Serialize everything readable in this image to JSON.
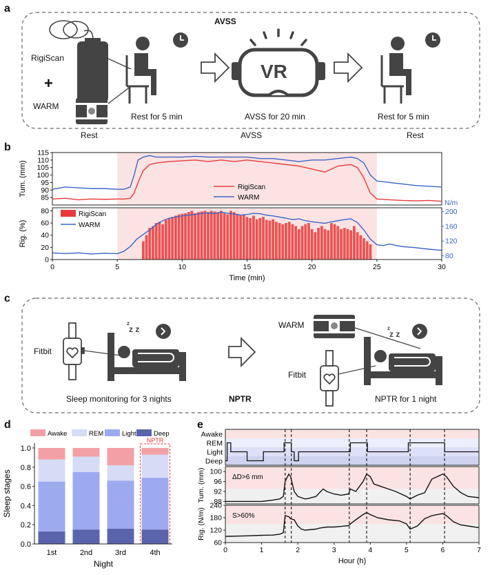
{
  "panel_a": {
    "letter": "a",
    "title": "AVSS",
    "rigiscan_label": "RigiScan",
    "plus": "+",
    "warm_label": "WARM",
    "vr_text": "VR",
    "step1": "Rest for 5 min",
    "step2": "AVSS for 20 min",
    "step3": "Rest for 5 min",
    "bottom1": "Rest",
    "bottom2": "AVSS",
    "bottom3": "Rest"
  },
  "panel_b": {
    "letter": "b"
  },
  "panel_c": {
    "letter": "c",
    "fitbit_left": "Fitbit",
    "sleep_caption": "Sleep monitoring for 3 nights",
    "nptr_center": "NPTR",
    "warm_label": "WARM",
    "fitbit_right": "Fitbit",
    "nptr_caption": "NPTR for 1 night",
    "zzz": "z z",
    "zzz_small": "z"
  },
  "panel_d": {
    "letter": "d"
  },
  "panel_e": {
    "letter": "e"
  },
  "colors": {
    "rigiscan": "#e83a3a",
    "warm": "#3a64c8",
    "shade": "#fbe3e3",
    "awake": "#f2a0a6",
    "rem": "#d6dbf6",
    "light": "#9eaaf0",
    "deep": "#5a64ad"
  },
  "chart_data": [
    {
      "id": "b-top",
      "type": "line",
      "ylabel": "Tum. (mm)",
      "ylim": [
        80,
        115
      ],
      "yticks": [
        85,
        90,
        95,
        100,
        105,
        110,
        115
      ],
      "xlim": [
        0,
        30
      ],
      "shade_x": [
        5,
        25
      ],
      "legend": [
        "RigiScan",
        "WARM"
      ],
      "series": [
        {
          "name": "RigiScan",
          "x": [
            0,
            1,
            2,
            3,
            4,
            5,
            5.5,
            6,
            6.3,
            6.6,
            7,
            7.5,
            8,
            9,
            10,
            11,
            12,
            13,
            14,
            15,
            16,
            17,
            18,
            19,
            20,
            21,
            22,
            23,
            23.5,
            24,
            24.5,
            25,
            26,
            27,
            28,
            29,
            30
          ],
          "values": [
            84,
            84.5,
            83.5,
            84,
            83.8,
            84,
            84,
            84.5,
            88,
            95,
            103,
            107,
            108,
            109,
            109.5,
            110,
            109,
            110,
            109,
            110,
            109,
            108,
            107,
            106,
            104,
            102,
            106,
            107,
            105,
            98,
            88,
            84,
            83.5,
            83,
            82.8,
            83,
            82.5
          ]
        },
        {
          "name": "WARM",
          "x": [
            0,
            1,
            2,
            3,
            4,
            5,
            5.5,
            6,
            6.3,
            6.6,
            7,
            7.5,
            8,
            9,
            10,
            11,
            12,
            13,
            14,
            15,
            16,
            17,
            18,
            19,
            20,
            21,
            22,
            23,
            23.5,
            24,
            24.5,
            25,
            26,
            27,
            28,
            29,
            30
          ],
          "values": [
            90.5,
            92,
            91.5,
            91,
            91,
            90.5,
            90.5,
            92,
            100,
            110,
            112,
            113,
            112,
            112,
            112,
            112.5,
            112,
            112,
            112,
            112,
            111,
            111,
            110,
            109,
            110,
            110,
            111,
            112,
            111,
            108,
            100,
            96,
            95,
            94,
            93,
            92.5,
            92
          ]
        }
      ]
    },
    {
      "id": "b-bottom",
      "type": "bar+line",
      "ylabel": "Rig. (%)",
      "xlabel": "Time (min)",
      "xlim": [
        0,
        30
      ],
      "xticks": [
        0,
        5,
        10,
        15,
        20,
        25,
        30
      ],
      "ylim": [
        0,
        85
      ],
      "yticks": [
        0,
        20,
        40,
        60,
        80
      ],
      "y2label": "N/m",
      "y2lim": [
        70,
        210
      ],
      "y2ticks": [
        80,
        120,
        160,
        200
      ],
      "shade_x": [
        5,
        25
      ],
      "legend": [
        "RigiScan",
        "WARM"
      ],
      "bars": {
        "name": "RigiScan",
        "x_start": 6.9,
        "x_end": 24.5,
        "step": 0.25,
        "values": [
          30,
          40,
          52,
          55,
          60,
          62,
          58,
          65,
          68,
          70,
          72,
          74,
          75,
          76,
          78,
          80,
          76,
          78,
          79,
          80,
          78,
          80,
          79,
          78,
          80,
          76,
          74,
          80,
          78,
          75,
          72,
          74,
          70,
          68,
          72,
          66,
          68,
          70,
          65,
          64,
          66,
          62,
          60,
          58,
          60,
          62,
          58,
          55,
          50,
          55,
          58,
          60,
          50,
          45,
          52,
          55,
          50,
          48,
          60,
          58,
          55,
          50,
          52,
          50,
          48,
          55,
          45,
          40,
          35,
          30,
          25
        ]
      },
      "series": [
        {
          "name": "WARM",
          "x": [
            0,
            1,
            2,
            3,
            4,
            5,
            5.5,
            6,
            6.5,
            7,
            7.5,
            8,
            8.5,
            9,
            9.5,
            10,
            10.5,
            11,
            11.5,
            12,
            12.5,
            13,
            13.5,
            14,
            14.5,
            15,
            15.5,
            16,
            16.5,
            17,
            17.5,
            18,
            18.5,
            19,
            19.5,
            20,
            20.5,
            21,
            21.5,
            22,
            22.5,
            23,
            23.5,
            24,
            24.5,
            25,
            25.5,
            26,
            26.5,
            27,
            28,
            29,
            30
          ],
          "values": [
            88,
            86,
            88,
            85,
            87,
            86,
            92,
            105,
            125,
            138,
            150,
            165,
            175,
            182,
            185,
            188,
            190,
            192,
            195,
            196,
            194,
            198,
            195,
            193,
            190,
            192,
            195,
            194,
            190,
            188,
            185,
            182,
            178,
            180,
            175,
            172,
            170,
            168,
            172,
            175,
            178,
            180,
            170,
            150,
            125,
            110,
            108,
            112,
            108,
            105,
            102,
            98,
            95
          ]
        }
      ]
    },
    {
      "id": "d",
      "type": "bar",
      "stacked": true,
      "ylabel": "Sleep stages",
      "xlabel": "Night",
      "ylim": [
        0,
        1.05
      ],
      "yticks": [
        0.0,
        0.2,
        0.4,
        0.6,
        0.8,
        1.0
      ],
      "categories": [
        "1st",
        "2nd",
        "3rd",
        "4th"
      ],
      "legend": [
        "Awake",
        "REM",
        "Light",
        "Deep"
      ],
      "annotation": "NPTR",
      "series": [
        {
          "name": "Deep",
          "values": [
            0.13,
            0.15,
            0.16,
            0.15
          ]
        },
        {
          "name": "Light",
          "values": [
            0.52,
            0.6,
            0.5,
            0.54
          ]
        },
        {
          "name": "REM",
          "values": [
            0.23,
            0.16,
            0.16,
            0.24
          ]
        },
        {
          "name": "Awake",
          "values": [
            0.12,
            0.09,
            0.18,
            0.07
          ]
        }
      ]
    },
    {
      "id": "e",
      "type": "line",
      "xlabel": "Hour (h)",
      "xlim": [
        0,
        7
      ],
      "xticks": [
        0,
        1,
        2,
        3,
        4,
        5,
        6,
        7
      ],
      "dashed_x": [
        1.65,
        1.82,
        3.42,
        3.9,
        5.1,
        6.05
      ],
      "subplots": [
        {
          "ylabel": "",
          "categories": [
            "Awake",
            "REM",
            "Light",
            "Deep"
          ],
          "hypnogram": {
            "x": [
              0,
              0.05,
              0.05,
              0.15,
              0.15,
              0.6,
              0.6,
              1.05,
              1.05,
              1.62,
              1.62,
              1.82,
              1.82,
              1.9,
              1.9,
              2.02,
              2.02,
              3.45,
              3.45,
              3.92,
              3.92,
              5.05,
              5.05,
              6.05,
              6.05,
              7
            ],
            "stage": [
              3,
              3,
              1,
              1,
              2,
              2,
              3,
              3,
              2,
              2,
              1,
              1,
              2,
              2,
              3,
              3,
              2,
              2,
              1,
              1,
              2,
              2,
              1,
              1,
              2,
              2
            ]
          }
        },
        {
          "ylabel": "Tum. (mm)",
          "ylim": [
            87,
            102
          ],
          "yticks": [
            88,
            92,
            96,
            100
          ],
          "annotation": "ΔD>6 mm",
          "threshold": 93,
          "series": [
            {
              "name": "Tum.",
              "x": [
                0,
                0.5,
                1,
                1.3,
                1.5,
                1.6,
                1.65,
                1.75,
                1.8,
                1.85,
                1.9,
                1.95,
                2.0,
                2.1,
                2.2,
                2.3,
                2.5,
                2.6,
                2.7,
                2.8,
                3.0,
                3.2,
                3.4,
                3.45,
                3.6,
                3.8,
                3.9,
                4.0,
                4.1,
                4.3,
                4.5,
                4.7,
                5.0,
                5.1,
                5.3,
                5.5,
                5.7,
                6.0,
                6.1,
                6.3,
                6.5,
                6.7,
                7
              ],
              "values": [
                88,
                88,
                88,
                88.5,
                89,
                90,
                96,
                99,
                98,
                95,
                92,
                91,
                90,
                89.5,
                89,
                89.2,
                90,
                91.5,
                93,
                92,
                91,
                90.5,
                91,
                93,
                92,
                96,
                99,
                98,
                95,
                94,
                93,
                92,
                90,
                89,
                90.5,
                91.5,
                97,
                99,
                98,
                94,
                91.5,
                90,
                89.5
              ]
            }
          ]
        },
        {
          "ylabel": "Rig. (N/m)",
          "ylim": [
            60,
            240
          ],
          "yticks": [
            60,
            120,
            180,
            240
          ],
          "annotation": "S>60%",
          "threshold": 150,
          "series": [
            {
              "name": "Rig.",
              "x": [
                0,
                0.5,
                1,
                1.3,
                1.5,
                1.6,
                1.65,
                1.75,
                1.8,
                1.9,
                2.0,
                2.1,
                2.2,
                2.5,
                2.6,
                2.8,
                3.0,
                3.2,
                3.4,
                3.45,
                3.6,
                3.8,
                3.9,
                4.0,
                4.2,
                4.5,
                4.8,
                5.0,
                5.1,
                5.3,
                5.5,
                5.7,
                6.0,
                6.1,
                6.3,
                6.5,
                6.7,
                7
              ],
              "values": [
                90,
                92,
                95,
                96,
                100,
                108,
                190,
                185,
                175,
                170,
                140,
                125,
                120,
                125,
                130,
                135,
                135,
                138,
                142,
                150,
                170,
                195,
                205,
                195,
                180,
                170,
                165,
                150,
                125,
                140,
                175,
                190,
                200,
                190,
                160,
                145,
                140,
                132
              ]
            }
          ]
        }
      ]
    }
  ]
}
